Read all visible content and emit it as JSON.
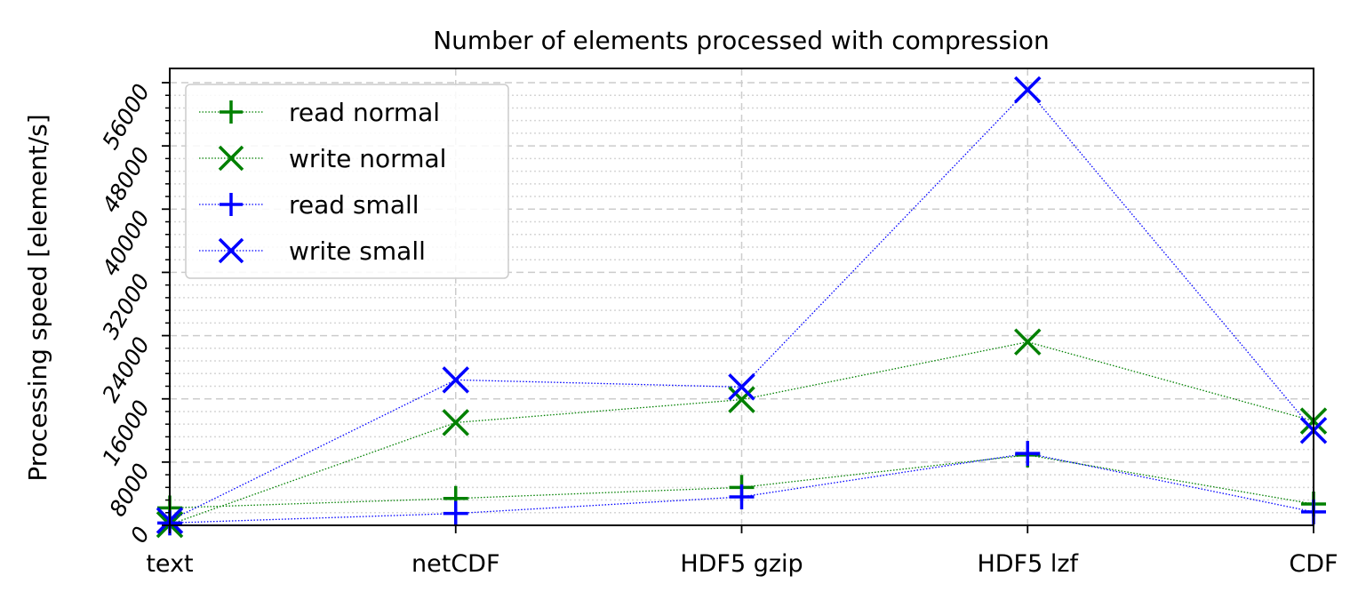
{
  "chart_data": {
    "type": "line",
    "title": "Number of elements processed with compression",
    "xlabel": "",
    "ylabel": "Processing speed [element/s]",
    "categories": [
      "text",
      "netCDF",
      "HDF5 gzip",
      "HDF5 lzf",
      "CDF"
    ],
    "ylim": [
      0,
      56000
    ],
    "yticks": [
      0,
      8000,
      16000,
      24000,
      32000,
      40000,
      48000,
      56000
    ],
    "ytick_labels": [
      "0",
      "8000",
      "16000",
      "24000",
      "32000",
      "40000",
      "48000",
      "56000"
    ],
    "grid": true,
    "legend": "top-left",
    "series": [
      {
        "name": "read normal",
        "color": "#008000",
        "marker": "plus",
        "values": [
          2200,
          3400,
          4800,
          8900,
          2700
        ]
      },
      {
        "name": "write normal",
        "color": "#008000",
        "marker": "x",
        "values": [
          100,
          13000,
          15900,
          23200,
          13200
        ]
      },
      {
        "name": "read small",
        "color": "#0000ff",
        "marker": "plus",
        "values": [
          300,
          1500,
          3600,
          9100,
          1700
        ]
      },
      {
        "name": "write small",
        "color": "#0000ff",
        "marker": "x",
        "values": [
          600,
          18400,
          17500,
          55100,
          12000
        ]
      }
    ]
  }
}
